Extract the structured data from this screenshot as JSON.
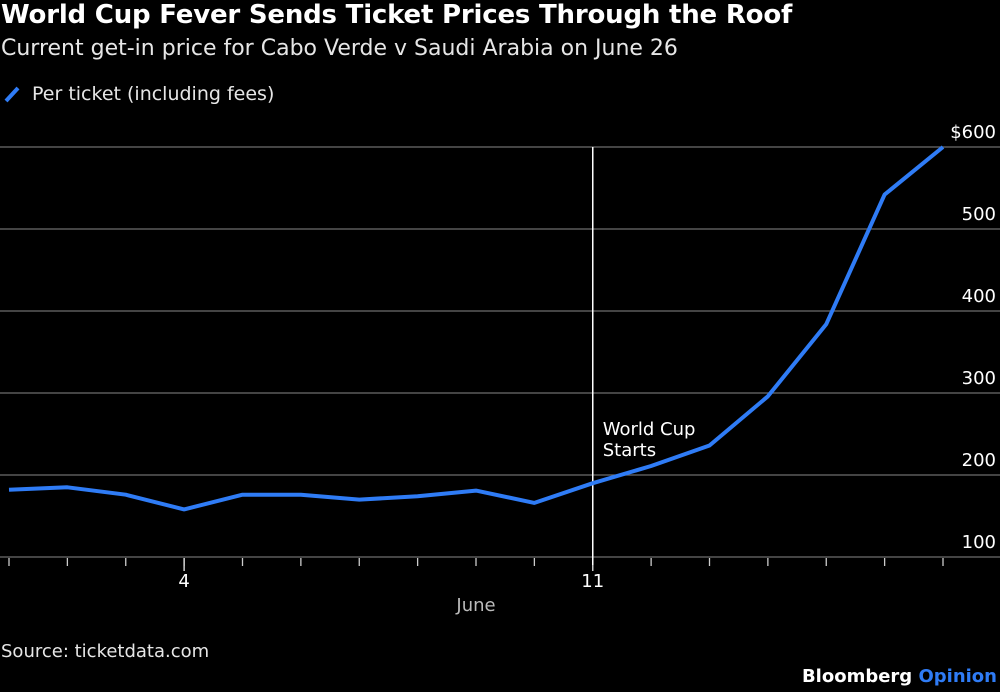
{
  "title": "World Cup Fever Sends Ticket Prices Through the Roof",
  "subtitle": "Current get-in price for Cabo Verde v Saudi Arabia on June 26",
  "legend": {
    "label": "Per ticket (including fees)"
  },
  "source": "Source: ticketdata.com",
  "brand": {
    "main": "Bloomberg",
    "accent": "Opinion"
  },
  "colors": {
    "series": "#2f7cf6",
    "grid": "#6e6e6e",
    "axis": "#cccccc",
    "background": "#000000",
    "text": "#ffffff",
    "marker": "#ffffff"
  },
  "chart_data": {
    "type": "line",
    "title": "World Cup Fever Sends Ticket Prices Through the Roof",
    "subtitle": "Current get-in price for Cabo Verde v Saudi Arabia on June 26",
    "xlabel": "June",
    "ylabel": "",
    "x": [
      1,
      2,
      3,
      4,
      5,
      6,
      7,
      8,
      9,
      10,
      11,
      12,
      13,
      14,
      15,
      16,
      17
    ],
    "x_ticks": [
      {
        "value": 4,
        "label": "4"
      },
      {
        "value": 11,
        "label": "11"
      }
    ],
    "xlim": [
      1,
      17
    ],
    "ylim": [
      100,
      600
    ],
    "y_ticks": [
      {
        "value": 100,
        "label": "100"
      },
      {
        "value": 200,
        "label": "200"
      },
      {
        "value": 300,
        "label": "300"
      },
      {
        "value": 400,
        "label": "400"
      },
      {
        "value": 500,
        "label": "500"
      },
      {
        "value": 600,
        "label": "$600"
      }
    ],
    "series": [
      {
        "name": "Per ticket (including fees)",
        "color": "#2f7cf6",
        "values": [
          182,
          185,
          176,
          158,
          176,
          176,
          170,
          174,
          181,
          166,
          190,
          211,
          236,
          296,
          384,
          542,
          600
        ]
      }
    ],
    "annotations": [
      {
        "type": "vline",
        "x": 11,
        "lines": [
          "World Cup",
          "Starts"
        ]
      }
    ],
    "grid": true,
    "legend_position": "top-left"
  }
}
